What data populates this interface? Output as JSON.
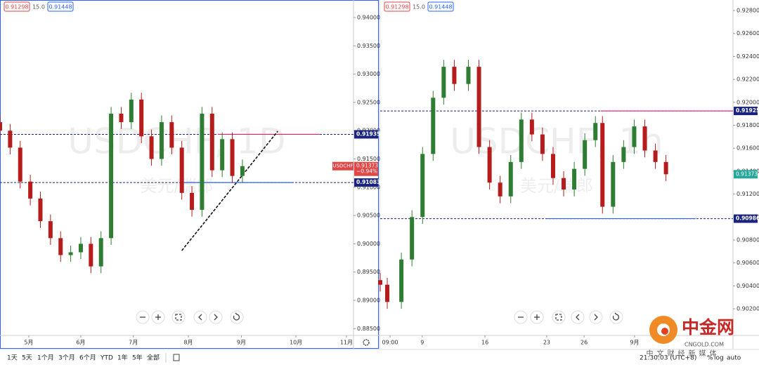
{
  "chart_data": [
    {
      "type": "candlestick",
      "symbol": "USDCHF",
      "watermark": "USDCHF, 1D",
      "watermark_sub": "美元/瑞郎",
      "header": [
        "0.91298",
        "15.0",
        "0.91448"
      ],
      "change": "−0.94%",
      "up_color": "#2e7d32",
      "down_color": "#b71c1c",
      "x": [
        0,
        2,
        4,
        6,
        8,
        10,
        12,
        14,
        16,
        18,
        20,
        22,
        24,
        26,
        28,
        30,
        32,
        34,
        36,
        38,
        40,
        42,
        44,
        46,
        48
      ],
      "open": [
        0.9215,
        0.92,
        0.917,
        0.911,
        0.908,
        0.904,
        0.901,
        0.898,
        0.8985,
        0.9,
        0.896,
        0.901,
        0.923,
        0.9215,
        0.9255,
        0.919,
        0.915,
        0.9215,
        0.917,
        0.909,
        0.906,
        0.923,
        0.913,
        0.9185,
        0.912
      ],
      "high": [
        0.9227,
        0.9212,
        0.9182,
        0.9122,
        0.9092,
        0.9052,
        0.9022,
        0.8997,
        0.9012,
        0.9012,
        0.9022,
        0.9242,
        0.9242,
        0.9267,
        0.9267,
        0.9202,
        0.9227,
        0.9227,
        0.9182,
        0.9102,
        0.9242,
        0.9242,
        0.9197,
        0.9197,
        0.9149
      ],
      "low": [
        0.9188,
        0.9158,
        0.9098,
        0.9068,
        0.9028,
        0.8998,
        0.8968,
        0.8968,
        0.8973,
        0.8948,
        0.8948,
        0.8998,
        0.9203,
        0.9203,
        0.9178,
        0.9138,
        0.9138,
        0.9158,
        0.9078,
        0.9048,
        0.9048,
        0.9118,
        0.9118,
        0.9108,
        0.9108
      ],
      "close": [
        0.92,
        0.917,
        0.911,
        0.908,
        0.904,
        0.901,
        0.898,
        0.8985,
        0.9,
        0.896,
        0.901,
        0.923,
        0.9215,
        0.9255,
        0.919,
        0.915,
        0.9215,
        0.917,
        0.909,
        0.906,
        0.923,
        0.913,
        0.9185,
        0.912,
        0.91373
      ],
      "last": 0.91373,
      "last_color": "#e04646",
      "xlim": [
        0,
        70
      ],
      "xticks": [
        {
          "value": 5.7,
          "label": "5月"
        },
        {
          "value": 16,
          "label": "6月"
        },
        {
          "value": 26.4,
          "label": "7月"
        },
        {
          "value": 37.3,
          "label": "8月"
        },
        {
          "value": 47.8,
          "label": "9月"
        },
        {
          "value": 58.6,
          "label": "10月"
        },
        {
          "value": 68.6,
          "label": "11月"
        }
      ],
      "ylim": [
        0.8838,
        0.9431
      ],
      "yticks": [
        {
          "value": 0.94,
          "label": "0.94000"
        },
        {
          "value": 0.935,
          "label": "0.93500"
        },
        {
          "value": 0.93,
          "label": "0.93000"
        },
        {
          "value": 0.925,
          "label": "0.92500"
        },
        {
          "value": 0.92,
          "label": "0.92000"
        },
        {
          "value": 0.915,
          "label": "0.91500"
        },
        {
          "value": 0.91,
          "label": "0.91000"
        },
        {
          "value": 0.905,
          "label": "0.90500"
        },
        {
          "value": 0.9,
          "label": "0.90000"
        },
        {
          "value": 0.895,
          "label": "0.89500"
        },
        {
          "value": 0.89,
          "label": "0.89000"
        },
        {
          "value": 0.885,
          "label": "0.88500"
        }
      ],
      "levels": [
        {
          "value": 0.91935,
          "color": "#1a237e"
        },
        {
          "value": 0.91083,
          "color": "#1a237e"
        }
      ],
      "segments": [
        {
          "value": 0.91935,
          "x": [
            43.1,
            63.3
          ],
          "color": "#e91e63"
        },
        {
          "value": 0.91083,
          "x": [
            35.9,
            58.1
          ],
          "color": "#2962ff"
        }
      ],
      "trendline": {
        "x": [
          36,
          55
        ],
        "y": [
          0.8988,
          0.9199
        ],
        "color": "#111111"
      }
    },
    {
      "type": "candlestick",
      "watermark": "USDCHF, 1h",
      "watermark_sub": "美元/瑞郎",
      "header": [
        "0.91298",
        "15.0",
        "0.91448"
      ],
      "up_color": "#2e7d32",
      "down_color": "#b71c1c",
      "x": [
        0,
        2,
        6,
        9,
        12,
        15,
        18,
        21,
        25,
        28,
        31,
        34,
        37,
        40,
        43,
        46,
        49,
        52,
        55,
        58,
        61,
        63,
        66,
        69,
        72,
        75,
        78,
        81
      ],
      "open": [
        0.9045,
        0.9041,
        0.9026,
        0.9063,
        0.91,
        0.9155,
        0.9204,
        0.9231,
        0.9216,
        0.9231,
        0.9161,
        0.913,
        0.9118,
        0.9148,
        0.9185,
        0.9172,
        0.9155,
        0.9134,
        0.9124,
        0.9142,
        0.9167,
        0.9182,
        0.9109,
        0.9148,
        0.9161,
        0.9179,
        0.9158,
        0.9148
      ],
      "high": [
        0.9051,
        0.9047,
        0.9069,
        0.9106,
        0.9161,
        0.921,
        0.9237,
        0.9237,
        0.9237,
        0.9237,
        0.9167,
        0.9136,
        0.9154,
        0.9191,
        0.9191,
        0.9178,
        0.9161,
        0.914,
        0.9148,
        0.9173,
        0.9188,
        0.9188,
        0.9154,
        0.9167,
        0.9185,
        0.9185,
        0.9164,
        0.9154
      ],
      "low": [
        0.9035,
        0.902,
        0.902,
        0.9057,
        0.9094,
        0.9149,
        0.9198,
        0.921,
        0.921,
        0.9155,
        0.9124,
        0.9112,
        0.9112,
        0.9142,
        0.9166,
        0.9149,
        0.9128,
        0.9118,
        0.9118,
        0.9136,
        0.9161,
        0.9103,
        0.9103,
        0.9142,
        0.9155,
        0.9152,
        0.9142,
        0.91313
      ],
      "close": [
        0.9041,
        0.9026,
        0.9063,
        0.91,
        0.9155,
        0.9204,
        0.9231,
        0.9216,
        0.9231,
        0.9161,
        0.913,
        0.9118,
        0.9148,
        0.9185,
        0.9172,
        0.9155,
        0.9134,
        0.9124,
        0.9142,
        0.9167,
        0.9182,
        0.9109,
        0.9148,
        0.9161,
        0.9179,
        0.9158,
        0.9148,
        0.91373
      ],
      "last": 0.91373,
      "last_color": "#26a69a",
      "xlim": [
        0,
        100
      ],
      "xticks": [
        {
          "value": 2.8,
          "label": "09:00"
        },
        {
          "value": 11.9,
          "label": "9"
        },
        {
          "value": 29.7,
          "label": "16"
        },
        {
          "value": 47.2,
          "label": "23"
        },
        {
          "value": 57.8,
          "label": "26"
        },
        {
          "value": 72.1,
          "label": "9月"
        }
      ],
      "ylim": [
        0.89968,
        0.92892
      ],
      "yticks": [
        {
          "value": 0.928,
          "label": "0.92800"
        },
        {
          "value": 0.926,
          "label": "0.92600"
        },
        {
          "value": 0.924,
          "label": "0.92400"
        },
        {
          "value": 0.922,
          "label": "0.92200"
        },
        {
          "value": 0.92,
          "label": "0.92000"
        },
        {
          "value": 0.918,
          "label": "0.91800"
        },
        {
          "value": 0.916,
          "label": "0.91600"
        },
        {
          "value": 0.914,
          "label": "0.91400"
        },
        {
          "value": 0.912,
          "label": "0.91200"
        },
        {
          "value": 0.91,
          "label": "0.91000"
        },
        {
          "value": 0.908,
          "label": "0.90800"
        },
        {
          "value": 0.906,
          "label": "0.90600"
        },
        {
          "value": 0.904,
          "label": "0.90400"
        },
        {
          "value": 0.902,
          "label": "0.90200"
        }
      ],
      "levels": [
        {
          "value": 0.91925,
          "color": "#1a237e"
        },
        {
          "value": 0.90986,
          "color": "#1a237e"
        }
      ],
      "segments": [
        {
          "value": 0.91925,
          "x": [
            62.5,
            100
          ],
          "color": "#e91e63"
        },
        {
          "value": 0.90986,
          "x": [
            47.2,
            89.4
          ],
          "color": "#2962ff"
        }
      ]
    }
  ],
  "toolbar": {
    "ranges": [
      "1天",
      "5天",
      "1个月",
      "3个月",
      "6个月",
      "YTD",
      "1年",
      "5年",
      "全部"
    ],
    "time": "21:30:03 (UTC+8)",
    "options": [
      "%",
      "log",
      "auto"
    ]
  },
  "logo": {
    "name": "中金网",
    "site": "CNGOLD.COM",
    "slogan": "中文财经新媒体"
  }
}
